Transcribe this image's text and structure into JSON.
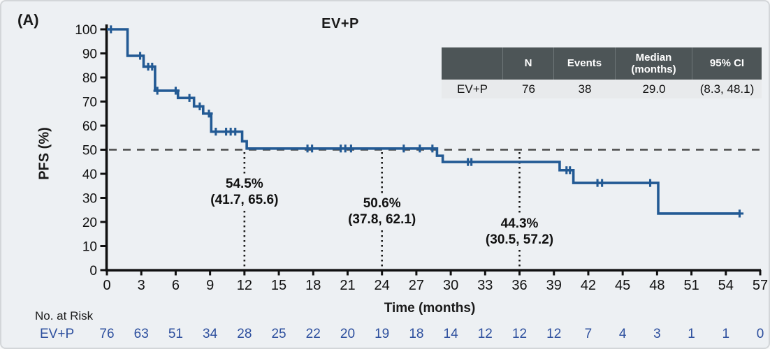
{
  "panel_label": "(A)",
  "stats_table": {
    "headers": [
      "",
      "N",
      "Events",
      "Median\n(months)",
      "95% CI"
    ],
    "row": [
      "EV+P",
      "76",
      "38",
      "29.0",
      "(8.3, 48.1)"
    ]
  },
  "chart_data": {
    "type": "line",
    "subtype": "kaplan-meier-step",
    "title": "EV+P",
    "xlabel": "Time (months)",
    "ylabel": "PFS (%)",
    "xlim": [
      0,
      57
    ],
    "ylim": [
      0,
      100
    ],
    "xticks": [
      0,
      3,
      6,
      9,
      12,
      15,
      18,
      21,
      24,
      27,
      30,
      33,
      36,
      39,
      42,
      45,
      48,
      51,
      54,
      57
    ],
    "yticks": [
      0,
      10,
      20,
      30,
      40,
      50,
      60,
      70,
      80,
      90,
      100
    ],
    "grid": false,
    "reference_dashed_line_y": 50,
    "dotted_marker_months": [
      12,
      24,
      36
    ],
    "series": [
      {
        "name": "EV+P",
        "color": "#235a94",
        "steps": [
          [
            0,
            100
          ],
          [
            1.8,
            89
          ],
          [
            3.2,
            84.5
          ],
          [
            4.2,
            74.5
          ],
          [
            6.2,
            71.5
          ],
          [
            7.6,
            68
          ],
          [
            8.4,
            65
          ],
          [
            9.1,
            57.5
          ],
          [
            11.8,
            53.5
          ],
          [
            12.2,
            50.5
          ],
          [
            28.8,
            47.5
          ],
          [
            29.3,
            44.9
          ],
          [
            39.5,
            41.5
          ],
          [
            40.7,
            36.2
          ],
          [
            48.1,
            23.5
          ]
        ],
        "end_month": 55.2,
        "censor_marks": [
          [
            0.35,
            100
          ],
          [
            2.9,
            89
          ],
          [
            3.6,
            84.5
          ],
          [
            3.95,
            84.5
          ],
          [
            4.4,
            74.5
          ],
          [
            6.0,
            74.5
          ],
          [
            7.2,
            71.5
          ],
          [
            8.1,
            68
          ],
          [
            8.9,
            65
          ],
          [
            9.5,
            57.5
          ],
          [
            10.4,
            57.5
          ],
          [
            10.8,
            57.5
          ],
          [
            11.2,
            57.5
          ],
          [
            17.5,
            50.5
          ],
          [
            17.9,
            50.5
          ],
          [
            20.4,
            50.5
          ],
          [
            20.8,
            50.5
          ],
          [
            21.3,
            50.5
          ],
          [
            25.9,
            50.5
          ],
          [
            27.3,
            50.5
          ],
          [
            28.4,
            50.5
          ],
          [
            31.5,
            44.9
          ],
          [
            31.8,
            44.9
          ],
          [
            40.1,
            41.5
          ],
          [
            40.4,
            41.5
          ],
          [
            42.8,
            36.2
          ],
          [
            43.2,
            36.2
          ],
          [
            47.4,
            36.2
          ],
          [
            55.2,
            23.5
          ]
        ]
      }
    ],
    "annotations": [
      {
        "month": 12,
        "line1": "54.5%",
        "line2": "(41.7, 65.6)"
      },
      {
        "month": 24,
        "line1": "50.6%",
        "line2": "(37.8, 62.1)"
      },
      {
        "month": 36,
        "line1": "44.3%",
        "line2": "(30.5, 57.2)"
      }
    ]
  },
  "risk_table": {
    "label": "No. at Risk",
    "series_label": "EV+P",
    "months": [
      0,
      3,
      6,
      9,
      12,
      15,
      18,
      21,
      24,
      27,
      30,
      33,
      36,
      39,
      42,
      45,
      48,
      51,
      54,
      57
    ],
    "values": [
      "76",
      "63",
      "51",
      "34",
      "28",
      "25",
      "22",
      "20",
      "19",
      "18",
      "14",
      "12",
      "12",
      "12",
      "7",
      "4",
      "3",
      "1",
      "1",
      "0"
    ]
  },
  "colors": {
    "curve": "#235a94",
    "risk_text": "#2d4f9e",
    "table_header_bg": "#4d5557",
    "table_row_bg": "#e8eaec",
    "dashed_line": "#4a4a4a",
    "dotted_line": "#1a1a1a",
    "background": "#edf0f3"
  }
}
